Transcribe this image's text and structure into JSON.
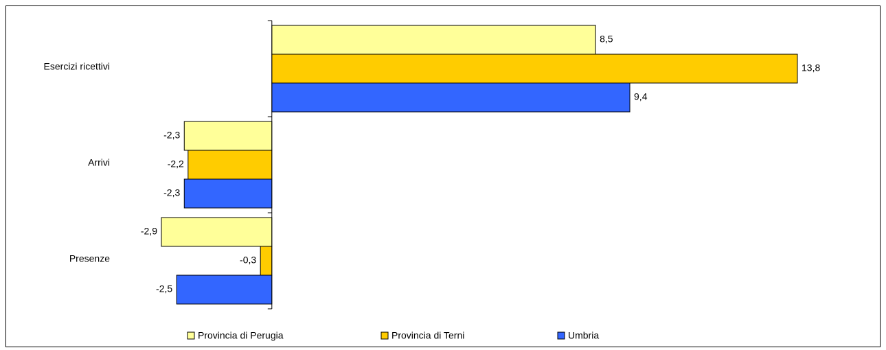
{
  "chart_data": {
    "type": "bar",
    "orientation": "horizontal",
    "categories": [
      "Esercizi ricettivi",
      "Arrivi",
      "Presenze"
    ],
    "series": [
      {
        "name": "Provincia di Perugia",
        "color": "#ffff99",
        "values": [
          8.5,
          -2.3,
          -2.9
        ],
        "value_labels": [
          "8,5",
          "-2,3",
          "-2,9"
        ]
      },
      {
        "name": "Provincia di Terni",
        "color": "#ffcc00",
        "values": [
          13.8,
          -2.2,
          -0.3
        ],
        "value_labels": [
          "13,8",
          "-2,2",
          "-0,3"
        ]
      },
      {
        "name": "Umbria",
        "color": "#3366ff",
        "values": [
          9.4,
          -2.3,
          -2.5
        ],
        "value_labels": [
          "9,4",
          "-2,3",
          "-2,5"
        ]
      }
    ],
    "legend": "bottom"
  }
}
